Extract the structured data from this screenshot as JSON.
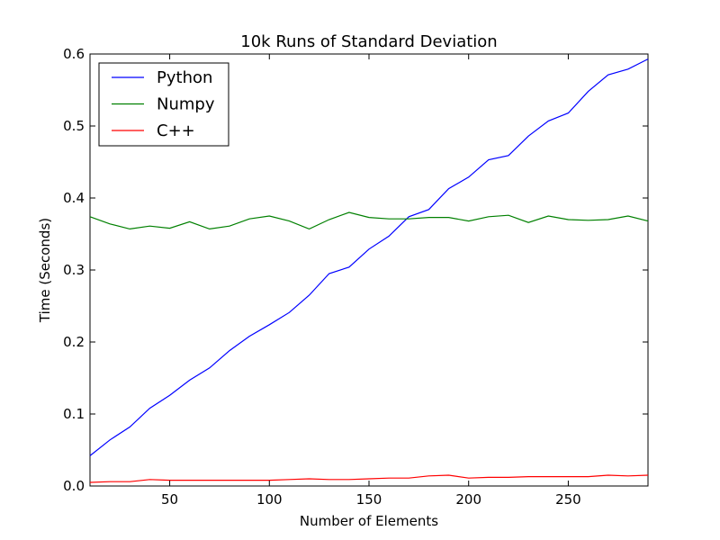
{
  "chart_data": {
    "type": "line",
    "title": "10k Runs of Standard Deviation",
    "xlabel": "Number of Elements",
    "ylabel": "Time (Seconds)",
    "xlim": [
      10,
      290
    ],
    "ylim": [
      0.0,
      0.6
    ],
    "grid": false,
    "legend_position": "top-left",
    "x_ticks": [
      50,
      100,
      150,
      200,
      250
    ],
    "x_tick_labels": [
      "50",
      "100",
      "150",
      "200",
      "250"
    ],
    "y_ticks": [
      0.0,
      0.1,
      0.2,
      0.3,
      0.4,
      0.5,
      0.6
    ],
    "y_tick_labels": [
      "0.0",
      "0.1",
      "0.2",
      "0.3",
      "0.4",
      "0.5",
      "0.6"
    ],
    "x": [
      10,
      20,
      30,
      40,
      50,
      60,
      70,
      80,
      90,
      100,
      110,
      120,
      130,
      140,
      150,
      160,
      170,
      180,
      190,
      200,
      210,
      220,
      230,
      240,
      250,
      260,
      270,
      280,
      290
    ],
    "series": [
      {
        "name": "Python",
        "color": "#0000ff",
        "values": [
          0.042,
          0.064,
          0.082,
          0.108,
          0.126,
          0.147,
          0.164,
          0.188,
          0.208,
          0.224,
          0.241,
          0.265,
          0.295,
          0.304,
          0.329,
          0.347,
          0.374,
          0.384,
          0.413,
          0.429,
          0.453,
          0.459,
          0.486,
          0.507,
          0.518,
          0.548,
          0.571,
          0.579,
          0.593
        ]
      },
      {
        "name": "Numpy",
        "color": "#008000",
        "values": [
          0.374,
          0.364,
          0.357,
          0.361,
          0.358,
          0.367,
          0.357,
          0.361,
          0.371,
          0.375,
          0.368,
          0.357,
          0.37,
          0.38,
          0.373,
          0.371,
          0.371,
          0.373,
          0.373,
          0.368,
          0.374,
          0.376,
          0.366,
          0.375,
          0.37,
          0.369,
          0.37,
          0.375,
          0.368
        ]
      },
      {
        "name": "C++",
        "color": "#ff0000",
        "values": [
          0.005,
          0.006,
          0.006,
          0.009,
          0.008,
          0.008,
          0.008,
          0.008,
          0.008,
          0.008,
          0.009,
          0.01,
          0.009,
          0.009,
          0.01,
          0.011,
          0.011,
          0.014,
          0.015,
          0.011,
          0.012,
          0.012,
          0.013,
          0.013,
          0.013,
          0.013,
          0.015,
          0.014,
          0.015
        ]
      }
    ]
  }
}
